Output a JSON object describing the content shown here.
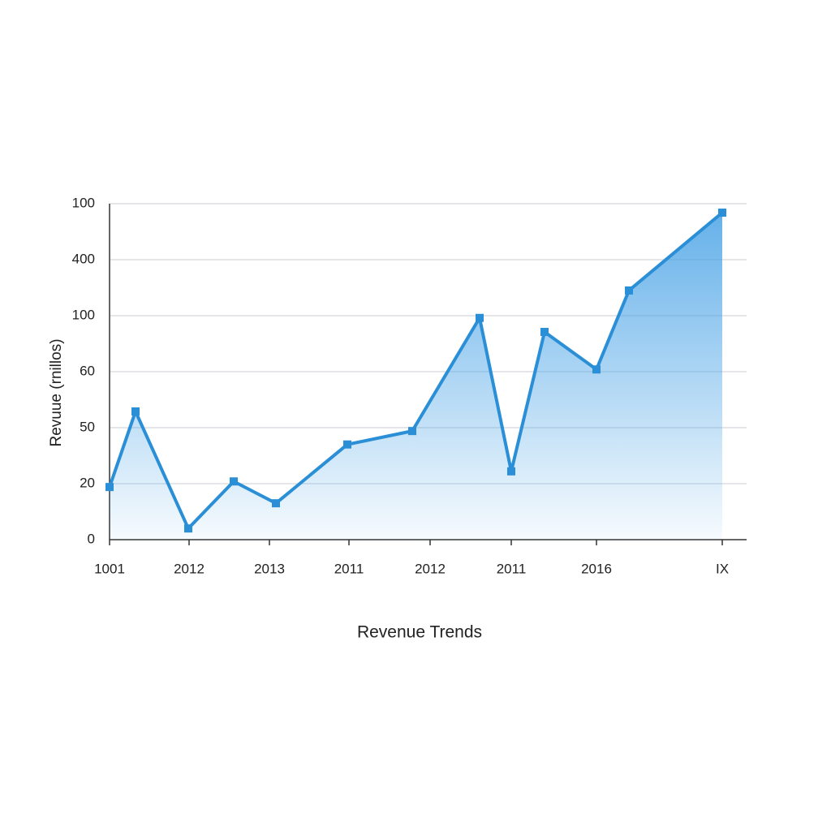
{
  "chart_data": {
    "type": "area",
    "title": "Revenue Trends",
    "y_label": "Revuue (rnillos)",
    "color": "#2a8fd6",
    "grid": true,
    "x": [
      0,
      32,
      97,
      153,
      205,
      293,
      373,
      456,
      495,
      536,
      600,
      640,
      755
    ],
    "values": [
      0.94,
      2.29,
      0.2,
      1.04,
      0.65,
      1.7,
      1.94,
      3.96,
      1.22,
      3.71,
      3.04,
      4.45,
      5.84
    ],
    "xlim": [
      0,
      785
    ],
    "xticks": [
      {
        "value": 0,
        "label": "1001"
      },
      {
        "value": 98,
        "label": "2012"
      },
      {
        "value": 197,
        "label": "2013"
      },
      {
        "value": 295,
        "label": "2011"
      },
      {
        "value": 395,
        "label": "2012"
      },
      {
        "value": 495,
        "label": "2011"
      },
      {
        "value": 600,
        "label": "2016"
      },
      {
        "value": 755,
        "label": "IX"
      }
    ],
    "ylim": [
      0,
      6
    ],
    "yticks": [
      {
        "value": 0,
        "label": "0"
      },
      {
        "value": 1,
        "label": "20"
      },
      {
        "value": 2,
        "label": "50"
      },
      {
        "value": 3,
        "label": "60"
      },
      {
        "value": 4,
        "label": "100"
      },
      {
        "value": 5,
        "label": "400"
      },
      {
        "value": 6,
        "label": "100"
      }
    ]
  }
}
